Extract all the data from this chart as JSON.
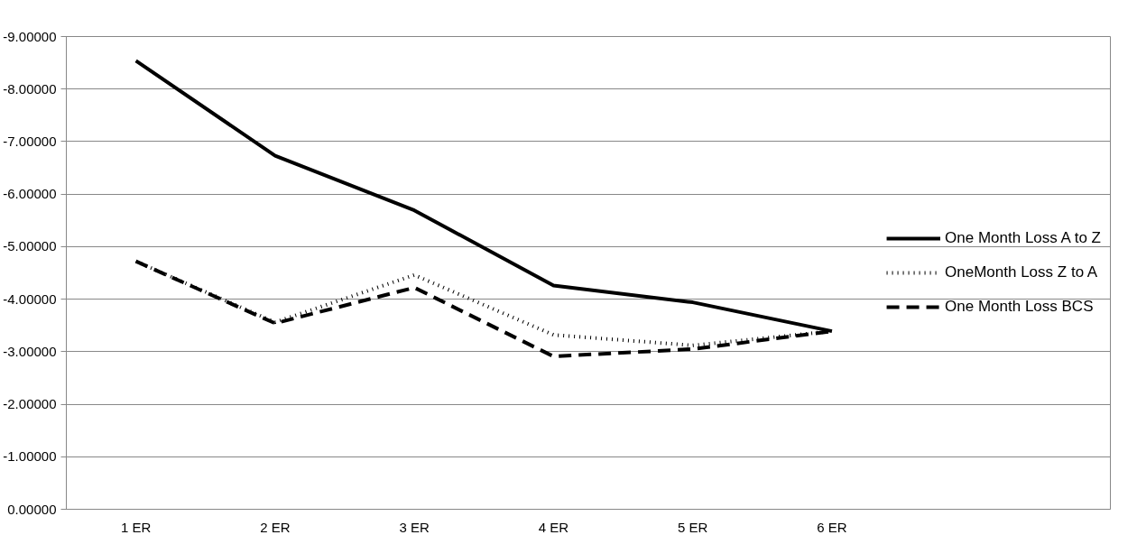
{
  "chart_data": {
    "type": "line",
    "categories": [
      "1 ER",
      "2 ER",
      "3 ER",
      "4 ER",
      "5 ER",
      "6 ER"
    ],
    "series": [
      {
        "name": "One Month Loss A to Z",
        "color": "#000000",
        "line_style": "solid",
        "values": [
          -8.54,
          -6.73,
          -5.69,
          -4.26,
          -3.94,
          -3.39
        ]
      },
      {
        "name": "OneMonth Loss Z to A",
        "color": "#000000",
        "line_style": "dotted",
        "values": [
          -4.72,
          -3.56,
          -4.46,
          -3.32,
          -3.12,
          -3.39
        ]
      },
      {
        "name": "One Month Loss BCS",
        "color": "#000000",
        "line_style": "dashed",
        "values": [
          -4.72,
          -3.54,
          -4.22,
          -2.91,
          -3.05,
          -3.39
        ]
      }
    ],
    "ylim": [
      0,
      -9
    ],
    "yticks": [
      {
        "value": 0,
        "label": "0.00000"
      },
      {
        "value": -1,
        "label": "-1.00000"
      },
      {
        "value": -2,
        "label": "-2.00000"
      },
      {
        "value": -3,
        "label": "-3.00000"
      },
      {
        "value": -4,
        "label": "-4.00000"
      },
      {
        "value": -5,
        "label": "-5.00000"
      },
      {
        "value": -6,
        "label": "-6.00000"
      },
      {
        "value": -7,
        "label": "-7.00000"
      },
      {
        "value": -8,
        "label": "-8.00000"
      },
      {
        "value": -9,
        "label": "-9.00000"
      }
    ],
    "grid": "y",
    "legend": "right",
    "marker": "none"
  }
}
